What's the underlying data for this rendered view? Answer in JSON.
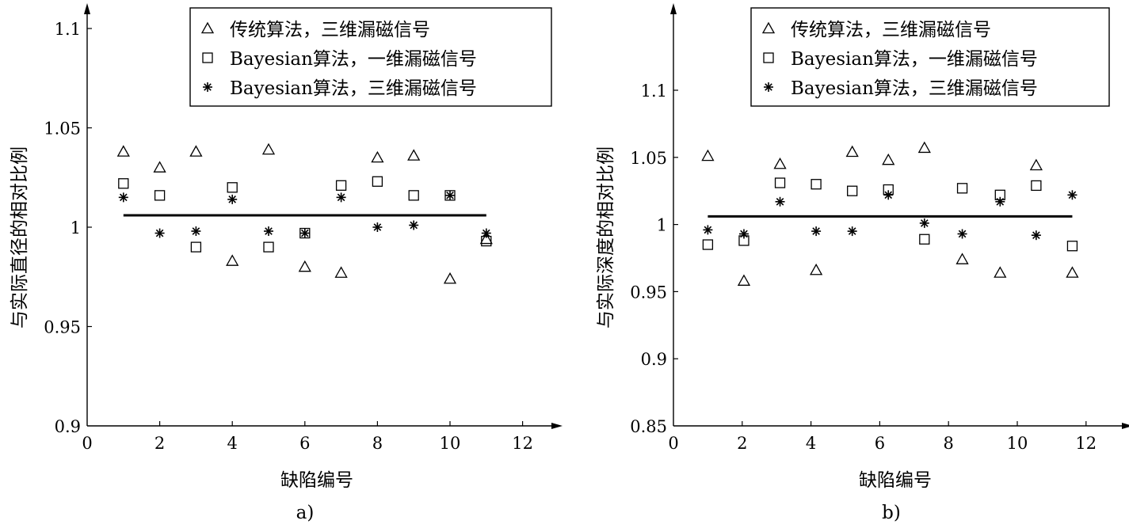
{
  "chart_data": [
    {
      "type": "scatter",
      "panel_label": "a)",
      "xlabel": "缺陷编号",
      "ylabel": "与实际直径的相对比例",
      "xlim": [
        0,
        13
      ],
      "ylim": [
        0.9,
        1.11
      ],
      "x_ticks": [
        0,
        2,
        4,
        6,
        8,
        10,
        12
      ],
      "y_ticks": [
        0.9,
        0.95,
        1,
        1.05,
        1.1
      ],
      "y_tick_labels": [
        "0.9",
        "0.95",
        "1",
        "1.05",
        "1.1"
      ],
      "legend_position": "top-right",
      "reference_line": {
        "x": [
          1,
          11
        ],
        "y": 1.006
      },
      "series": [
        {
          "name": "传统算法，三维漏磁信号",
          "marker": "triangle",
          "x": [
            1,
            2,
            3,
            4,
            5,
            6,
            7,
            8,
            9,
            10,
            11
          ],
          "y": [
            1.038,
            1.03,
            1.038,
            0.983,
            1.039,
            0.98,
            0.977,
            1.035,
            1.036,
            0.974,
            0.994
          ]
        },
        {
          "name": "Bayesian算法，一维漏磁信号",
          "marker": "square",
          "x": [
            1,
            2,
            3,
            4,
            5,
            6,
            7,
            8,
            9,
            10,
            11
          ],
          "y": [
            1.022,
            1.016,
            0.99,
            1.02,
            0.99,
            0.997,
            1.021,
            1.023,
            1.016,
            1.016,
            0.993
          ]
        },
        {
          "name": "Bayesian算法，三维漏磁信号",
          "marker": "star",
          "x": [
            1,
            2,
            3,
            4,
            5,
            6,
            7,
            8,
            9,
            10,
            11
          ],
          "y": [
            1.015,
            0.997,
            0.998,
            1.014,
            0.998,
            0.997,
            1.015,
            1.0,
            1.001,
            1.016,
            0.997
          ]
        }
      ]
    },
    {
      "type": "scatter",
      "panel_label": "b)",
      "xlabel": "缺陷编号",
      "ylabel": "与实际深度的相对比例",
      "xlim": [
        0,
        13
      ],
      "ylim": [
        0.85,
        1.15
      ],
      "x_ticks": [
        0,
        2,
        4,
        6,
        8,
        10,
        12
      ],
      "y_ticks": [
        0.85,
        0.9,
        0.95,
        1,
        1.05,
        1.1
      ],
      "y_tick_labels": [
        "0.85",
        "0.9",
        "0.95",
        "1",
        "1.05",
        "1.1"
      ],
      "legend_position": "top-right",
      "reference_line": {
        "x": [
          1,
          11.6
        ],
        "y": 1.006
      },
      "series": [
        {
          "name": "传统算法，三维漏磁信号",
          "marker": "triangle",
          "x": [
            1.0,
            2.05,
            3.1,
            4.15,
            5.2,
            6.25,
            7.3,
            8.4,
            9.5,
            10.55,
            11.6
          ],
          "y": [
            1.051,
            0.958,
            1.045,
            0.966,
            1.054,
            1.048,
            1.057,
            0.974,
            0.964,
            1.044,
            0.964
          ]
        },
        {
          "name": "Bayesian算法，一维漏磁信号",
          "marker": "square",
          "x": [
            1.0,
            2.05,
            3.1,
            4.15,
            5.2,
            6.25,
            7.3,
            8.4,
            9.5,
            10.55,
            11.6
          ],
          "y": [
            0.985,
            0.988,
            1.031,
            1.03,
            1.025,
            1.026,
            0.989,
            1.027,
            1.022,
            1.029,
            0.984
          ]
        },
        {
          "name": "Bayesian算法，三维漏磁信号",
          "marker": "star",
          "x": [
            1.0,
            2.05,
            3.1,
            4.15,
            5.2,
            6.25,
            7.3,
            8.4,
            9.5,
            10.55,
            11.6
          ],
          "y": [
            0.996,
            0.993,
            1.017,
            0.995,
            0.995,
            1.022,
            1.001,
            0.993,
            1.017,
            0.992,
            1.022
          ]
        }
      ]
    }
  ]
}
